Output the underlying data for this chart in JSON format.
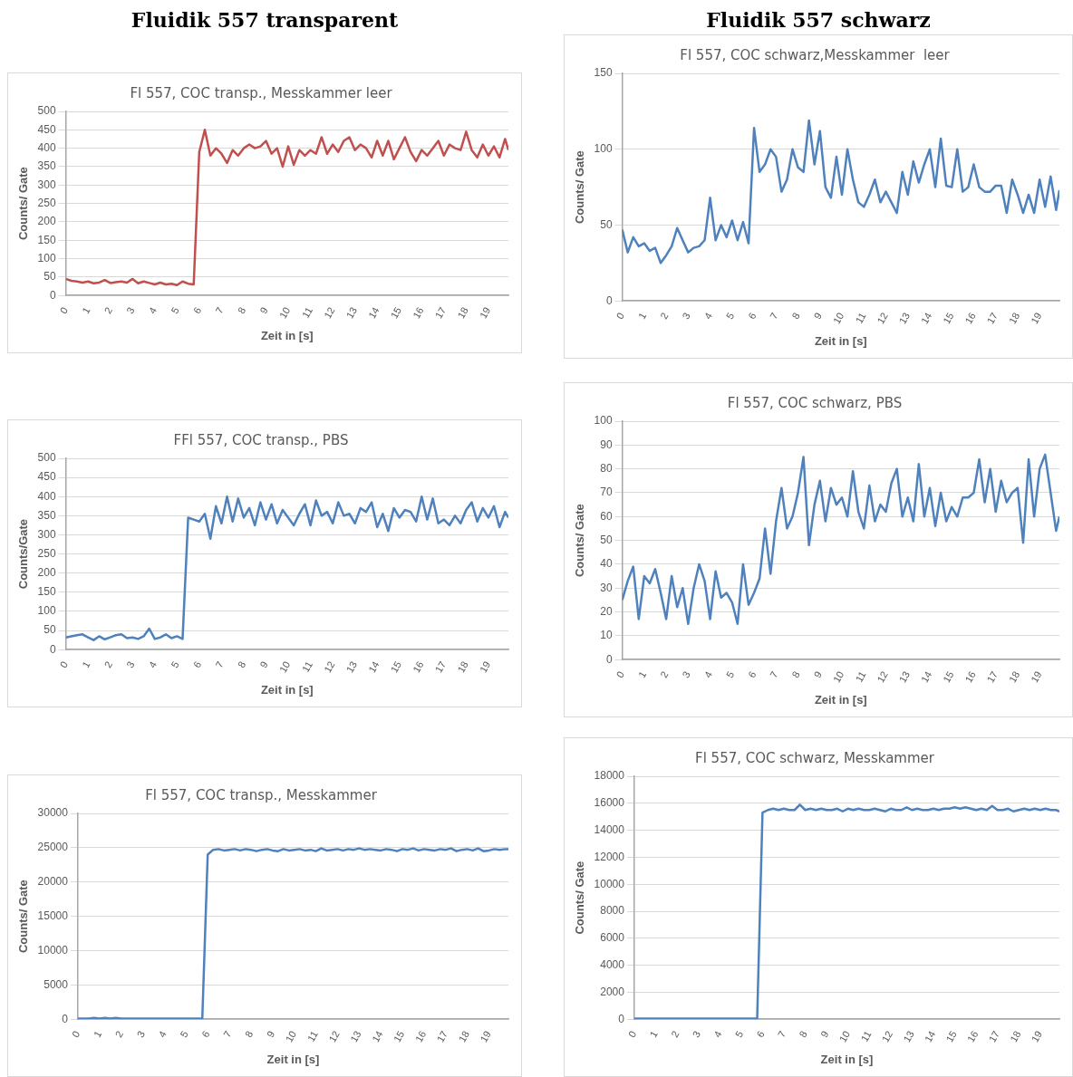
{
  "chart_data": [
    {
      "type": "other",
      "title": "Fluidik 557 transparent"
    },
    {
      "type": "other",
      "title": "Fluidik 557 schwarz"
    },
    {
      "type": "line",
      "title": "Fl 557, COC transp., Messkammer leer",
      "xlabel": "Zeit in [s]",
      "ylabel": "Counts/ Gate",
      "grid": "y",
      "xlim": [
        0,
        19.9
      ],
      "xticks": [
        0,
        1,
        2,
        3,
        4,
        5,
        6,
        7,
        8,
        9,
        10,
        11,
        12,
        13,
        14,
        15,
        16,
        17,
        18,
        19
      ],
      "ylim": [
        0,
        500
      ],
      "yticks": [
        0,
        50,
        100,
        150,
        200,
        250,
        300,
        350,
        400,
        450,
        500
      ],
      "x": [
        0,
        0.25,
        0.5,
        0.75,
        1,
        1.25,
        1.5,
        1.75,
        2,
        2.25,
        2.5,
        2.75,
        3,
        3.25,
        3.5,
        3.75,
        4,
        4.25,
        4.5,
        4.75,
        5,
        5.25,
        5.5,
        5.75,
        6,
        6.25,
        6.5,
        6.75,
        7,
        7.25,
        7.5,
        7.75,
        8,
        8.25,
        8.5,
        8.75,
        9,
        9.25,
        9.5,
        9.75,
        10,
        10.25,
        10.5,
        10.75,
        11,
        11.25,
        11.5,
        11.75,
        12,
        12.25,
        12.5,
        12.75,
        13,
        13.25,
        13.5,
        13.75,
        14,
        14.25,
        14.5,
        14.75,
        15,
        15.25,
        15.5,
        15.75,
        16,
        16.25,
        16.5,
        16.75,
        17,
        17.25,
        17.5,
        17.75,
        18,
        18.25,
        18.5,
        18.75,
        19,
        19.25,
        19.5,
        19.75,
        19.9
      ],
      "series": [
        {
          "color": "#c0504d",
          "values": [
            45,
            40,
            38,
            35,
            38,
            33,
            35,
            42,
            34,
            36,
            38,
            35,
            45,
            33,
            38,
            34,
            30,
            35,
            30,
            32,
            28,
            38,
            32,
            30,
            390,
            450,
            380,
            400,
            385,
            360,
            395,
            380,
            400,
            410,
            400,
            405,
            420,
            385,
            400,
            350,
            405,
            355,
            395,
            380,
            395,
            385,
            430,
            385,
            410,
            390,
            420,
            430,
            395,
            410,
            400,
            375,
            420,
            380,
            420,
            370,
            400,
            430,
            390,
            365,
            395,
            380,
            400,
            420,
            380,
            410,
            400,
            395,
            445,
            395,
            375,
            410,
            380,
            405,
            375,
            425,
            395
          ]
        }
      ]
    },
    {
      "type": "line",
      "title": "Fl 557, COC schwarz,Messkammer  leer",
      "xlabel": "Zeit in [s]",
      "ylabel": "Counts/ Gate",
      "grid": "y",
      "xlim": [
        0,
        19.9
      ],
      "xticks": [
        0,
        1,
        2,
        3,
        4,
        5,
        6,
        7,
        8,
        9,
        10,
        11,
        12,
        13,
        14,
        15,
        16,
        17,
        18,
        19
      ],
      "ylim": [
        0,
        150
      ],
      "yticks": [
        0,
        50,
        100,
        150
      ],
      "x": [
        0,
        0.25,
        0.5,
        0.75,
        1,
        1.25,
        1.5,
        1.75,
        2,
        2.25,
        2.5,
        2.75,
        3,
        3.25,
        3.5,
        3.75,
        4,
        4.25,
        4.5,
        4.75,
        5,
        5.25,
        5.5,
        5.75,
        6,
        6.25,
        6.5,
        6.75,
        7,
        7.25,
        7.5,
        7.75,
        8,
        8.25,
        8.5,
        8.75,
        9,
        9.25,
        9.5,
        9.75,
        10,
        10.25,
        10.5,
        10.75,
        11,
        11.25,
        11.5,
        11.75,
        12,
        12.25,
        12.5,
        12.75,
        13,
        13.25,
        13.5,
        13.75,
        14,
        14.25,
        14.5,
        14.75,
        15,
        15.25,
        15.5,
        15.75,
        16,
        16.25,
        16.5,
        16.75,
        17,
        17.25,
        17.5,
        17.75,
        18,
        18.25,
        18.5,
        18.75,
        19,
        19.25,
        19.5,
        19.75,
        19.9
      ],
      "series": [
        {
          "color": "#4f81bd",
          "values": [
            47,
            32,
            42,
            36,
            38,
            33,
            35,
            25,
            30,
            36,
            48,
            40,
            32,
            35,
            36,
            40,
            68,
            40,
            50,
            42,
            53,
            40,
            52,
            38,
            114,
            85,
            90,
            100,
            95,
            72,
            80,
            100,
            88,
            85,
            119,
            90,
            112,
            75,
            68,
            95,
            70,
            100,
            80,
            65,
            62,
            70,
            80,
            65,
            72,
            65,
            58,
            85,
            70,
            92,
            78,
            90,
            100,
            75,
            107,
            76,
            75,
            100,
            72,
            75,
            90,
            75,
            72,
            72,
            76,
            76,
            58,
            80,
            70,
            58,
            70,
            58,
            80,
            62,
            82,
            60,
            73
          ]
        }
      ]
    },
    {
      "type": "line",
      "title": "FFl 557, COC transp., PBS",
      "xlabel": "Zeit in [s]",
      "ylabel": "Counts/Gate",
      "grid": "y",
      "xlim": [
        0,
        19.9
      ],
      "xticks": [
        0,
        1,
        2,
        3,
        4,
        5,
        6,
        7,
        8,
        9,
        10,
        11,
        12,
        13,
        14,
        15,
        16,
        17,
        18,
        19
      ],
      "ylim": [
        0,
        500
      ],
      "yticks": [
        0,
        50,
        100,
        150,
        200,
        250,
        300,
        350,
        400,
        450,
        500
      ],
      "x": [
        0,
        0.25,
        0.5,
        0.75,
        1,
        1.25,
        1.5,
        1.75,
        2,
        2.25,
        2.5,
        2.75,
        3,
        3.25,
        3.5,
        3.75,
        4,
        4.25,
        4.5,
        4.75,
        5,
        5.25,
        5.5,
        5.75,
        6,
        6.25,
        6.5,
        6.75,
        7,
        7.25,
        7.5,
        7.75,
        8,
        8.25,
        8.5,
        8.75,
        9,
        9.25,
        9.5,
        9.75,
        10,
        10.25,
        10.5,
        10.75,
        11,
        11.25,
        11.5,
        11.75,
        12,
        12.25,
        12.5,
        12.75,
        13,
        13.25,
        13.5,
        13.75,
        14,
        14.25,
        14.5,
        14.75,
        15,
        15.25,
        15.5,
        15.75,
        16,
        16.25,
        16.5,
        16.75,
        17,
        17.25,
        17.5,
        17.75,
        18,
        18.25,
        18.5,
        18.75,
        19,
        19.25,
        19.5,
        19.75,
        19.9
      ],
      "series": [
        {
          "color": "#4f81bd",
          "values": [
            32,
            35,
            38,
            40,
            32,
            25,
            35,
            27,
            32,
            38,
            40,
            30,
            32,
            28,
            35,
            55,
            28,
            32,
            40,
            30,
            35,
            28,
            345,
            340,
            335,
            355,
            290,
            375,
            330,
            400,
            335,
            395,
            345,
            370,
            325,
            385,
            340,
            380,
            330,
            365,
            345,
            325,
            355,
            380,
            325,
            390,
            350,
            360,
            330,
            385,
            350,
            355,
            330,
            370,
            360,
            385,
            320,
            355,
            310,
            370,
            345,
            365,
            360,
            335,
            400,
            340,
            395,
            330,
            340,
            325,
            350,
            330,
            365,
            385,
            335,
            370,
            345,
            375,
            320,
            360,
            345
          ]
        }
      ]
    },
    {
      "type": "line",
      "title": "Fl 557, COC schwarz, PBS",
      "xlabel": "Zeit in [s]",
      "ylabel": "Counts/ Gate",
      "grid": "y",
      "xlim": [
        0,
        19.9
      ],
      "xticks": [
        0,
        1,
        2,
        3,
        4,
        5,
        6,
        7,
        8,
        9,
        10,
        11,
        12,
        13,
        14,
        15,
        16,
        17,
        18,
        19
      ],
      "ylim": [
        0,
        100
      ],
      "yticks": [
        0,
        10,
        20,
        30,
        40,
        50,
        60,
        70,
        80,
        90,
        100
      ],
      "x": [
        0,
        0.25,
        0.5,
        0.75,
        1,
        1.25,
        1.5,
        1.75,
        2,
        2.25,
        2.5,
        2.75,
        3,
        3.25,
        3.5,
        3.75,
        4,
        4.25,
        4.5,
        4.75,
        5,
        5.25,
        5.5,
        5.75,
        6,
        6.25,
        6.5,
        6.75,
        7,
        7.25,
        7.5,
        7.75,
        8,
        8.25,
        8.5,
        8.75,
        9,
        9.25,
        9.5,
        9.75,
        10,
        10.25,
        10.5,
        10.75,
        11,
        11.25,
        11.5,
        11.75,
        12,
        12.25,
        12.5,
        12.75,
        13,
        13.25,
        13.5,
        13.75,
        14,
        14.25,
        14.5,
        14.75,
        15,
        15.25,
        15.5,
        15.75,
        16,
        16.25,
        16.5,
        16.75,
        17,
        17.25,
        17.5,
        17.75,
        18,
        18.25,
        18.5,
        18.75,
        19,
        19.25,
        19.5,
        19.75,
        19.9
      ],
      "series": [
        {
          "color": "#4f81bd",
          "values": [
            25,
            33,
            39,
            17,
            35,
            32,
            38,
            28,
            17,
            35,
            22,
            30,
            15,
            30,
            40,
            33,
            17,
            37,
            26,
            28,
            24,
            15,
            40,
            23,
            28,
            34,
            55,
            36,
            58,
            72,
            55,
            60,
            70,
            85,
            48,
            65,
            75,
            58,
            72,
            65,
            68,
            60,
            79,
            62,
            55,
            73,
            58,
            65,
            62,
            74,
            80,
            60,
            68,
            58,
            82,
            60,
            72,
            56,
            70,
            58,
            64,
            60,
            68,
            68,
            70,
            84,
            66,
            80,
            62,
            75,
            66,
            70,
            72,
            49,
            84,
            60,
            80,
            86,
            70,
            54,
            60
          ]
        }
      ]
    },
    {
      "type": "line",
      "title": "Fl 557, COC transp., Messkammer",
      "xlabel": "Zeit in [s]",
      "ylabel": "Counts/ Gate",
      "grid": "y",
      "xlim": [
        0,
        19.9
      ],
      "xticks": [
        0,
        1,
        2,
        3,
        4,
        5,
        6,
        7,
        8,
        9,
        10,
        11,
        12,
        13,
        14,
        15,
        16,
        17,
        18,
        19
      ],
      "ylim": [
        0,
        30000
      ],
      "yticks": [
        0,
        5000,
        10000,
        15000,
        20000,
        25000,
        30000
      ],
      "x": [
        0,
        0.25,
        0.5,
        0.75,
        1,
        1.25,
        1.5,
        1.75,
        2,
        2.25,
        2.5,
        2.75,
        3,
        3.25,
        3.5,
        3.75,
        4,
        4.25,
        4.5,
        4.75,
        5,
        5.25,
        5.5,
        5.75,
        6,
        6.25,
        6.5,
        6.75,
        7,
        7.25,
        7.5,
        7.75,
        8,
        8.25,
        8.5,
        8.75,
        9,
        9.25,
        9.5,
        9.75,
        10,
        10.25,
        10.5,
        10.75,
        11,
        11.25,
        11.5,
        11.75,
        12,
        12.25,
        12.5,
        12.75,
        13,
        13.25,
        13.5,
        13.75,
        14,
        14.25,
        14.5,
        14.75,
        15,
        15.25,
        15.5,
        15.75,
        16,
        16.25,
        16.5,
        16.75,
        17,
        17.25,
        17.5,
        17.75,
        18,
        18.25,
        18.5,
        18.75,
        19,
        19.25,
        19.5,
        19.75,
        19.9
      ],
      "series": [
        {
          "color": "#4f81bd",
          "values": [
            100,
            100,
            100,
            200,
            100,
            200,
            100,
            200,
            100,
            100,
            100,
            100,
            100,
            100,
            100,
            100,
            100,
            100,
            100,
            100,
            100,
            100,
            100,
            100,
            24000,
            24700,
            24800,
            24600,
            24700,
            24800,
            24600,
            24800,
            24700,
            24500,
            24700,
            24800,
            24600,
            24500,
            24800,
            24600,
            24700,
            24800,
            24600,
            24700,
            24500,
            24900,
            24600,
            24700,
            24800,
            24600,
            24800,
            24700,
            24900,
            24700,
            24800,
            24700,
            24600,
            24800,
            24700,
            24500,
            24800,
            24700,
            24900,
            24600,
            24800,
            24700,
            24600,
            24800,
            24700,
            24900,
            24500,
            24700,
            24800,
            24600,
            24900,
            24500,
            24600,
            24800,
            24700,
            24800,
            24800
          ]
        }
      ]
    },
    {
      "type": "line",
      "title": "Fl 557, COC schwarz, Messkammer",
      "xlabel": "Zeit in [s]",
      "ylabel": "Counts/ Gate",
      "grid": "y",
      "xlim": [
        0,
        19.9
      ],
      "xticks": [
        0,
        1,
        2,
        3,
        4,
        5,
        6,
        7,
        8,
        9,
        10,
        11,
        12,
        13,
        14,
        15,
        16,
        17,
        18,
        19
      ],
      "ylim": [
        0,
        18000
      ],
      "yticks": [
        0,
        2000,
        4000,
        6000,
        8000,
        10000,
        12000,
        14000,
        16000,
        18000
      ],
      "x": [
        0,
        0.25,
        0.5,
        0.75,
        1,
        1.25,
        1.5,
        1.75,
        2,
        2.25,
        2.5,
        2.75,
        3,
        3.25,
        3.5,
        3.75,
        4,
        4.25,
        4.5,
        4.75,
        5,
        5.25,
        5.5,
        5.75,
        6,
        6.25,
        6.5,
        6.75,
        7,
        7.25,
        7.5,
        7.75,
        8,
        8.25,
        8.5,
        8.75,
        9,
        9.25,
        9.5,
        9.75,
        10,
        10.25,
        10.5,
        10.75,
        11,
        11.25,
        11.5,
        11.75,
        12,
        12.25,
        12.5,
        12.75,
        13,
        13.25,
        13.5,
        13.75,
        14,
        14.25,
        14.5,
        14.75,
        15,
        15.25,
        15.5,
        15.75,
        16,
        16.25,
        16.5,
        16.75,
        17,
        17.25,
        17.5,
        17.75,
        18,
        18.25,
        18.5,
        18.75,
        19,
        19.25,
        19.5,
        19.75,
        19.9
      ],
      "series": [
        {
          "color": "#4f81bd",
          "values": [
            50,
            50,
            50,
            50,
            50,
            50,
            50,
            50,
            50,
            50,
            50,
            50,
            50,
            50,
            50,
            50,
            50,
            50,
            50,
            50,
            50,
            50,
            50,
            50,
            15300,
            15500,
            15600,
            15500,
            15600,
            15500,
            15500,
            15900,
            15500,
            15600,
            15500,
            15600,
            15500,
            15500,
            15600,
            15400,
            15600,
            15500,
            15600,
            15500,
            15500,
            15600,
            15500,
            15400,
            15600,
            15500,
            15500,
            15700,
            15500,
            15600,
            15500,
            15500,
            15600,
            15500,
            15600,
            15600,
            15700,
            15600,
            15700,
            15600,
            15500,
            15600,
            15500,
            15800,
            15500,
            15500,
            15600,
            15400,
            15500,
            15600,
            15500,
            15600,
            15500,
            15600,
            15500,
            15500,
            15400
          ]
        }
      ]
    }
  ]
}
